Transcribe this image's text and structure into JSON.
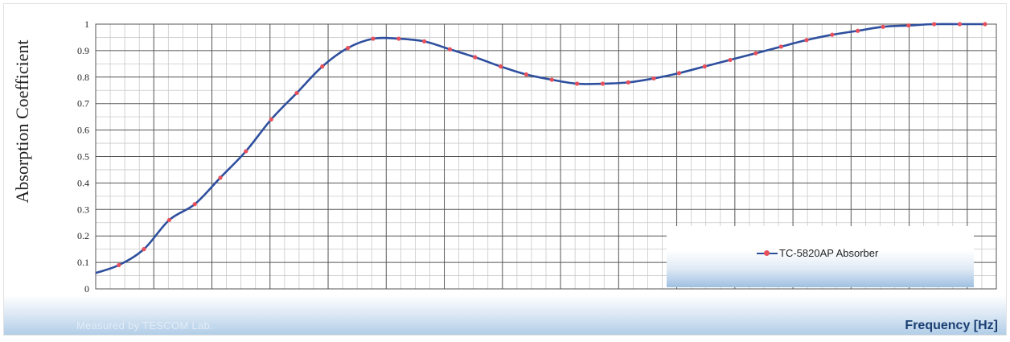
{
  "chart_data": {
    "type": "line",
    "title": "",
    "xlabel": "Frequency [Hz]",
    "ylabel": "Absorption Coefficient",
    "xlim": [
      200,
      3300
    ],
    "ylim": [
      0,
      1
    ],
    "x_ticks": [
      200,
      400,
      600,
      800,
      1000,
      1200,
      1400,
      1600,
      1800,
      2000,
      2200,
      2400,
      2600,
      2800,
      3000,
      3200
    ],
    "y_ticks": [
      "0",
      "0.1",
      "0.2",
      "0.3",
      "0.4",
      "0.5",
      "0.6",
      "0.7",
      "0.8",
      "0.9",
      "1"
    ],
    "grid": true,
    "legend_position": "bottom-right",
    "series": [
      {
        "name": "TC-5820AP Absorber",
        "color": "#2e4f9e",
        "marker_color": "#e8505b",
        "x": [
          280,
          366,
          453,
          541,
          629,
          717,
          804,
          892,
          980,
          1068,
          1155,
          1243,
          1331,
          1419,
          1506,
          1594,
          1682,
          1770,
          1857,
          1945,
          2033,
          2121,
          2208,
          2296,
          2384,
          2472,
          2559,
          2647,
          2735,
          2823,
          2910,
          2998,
          3086,
          3174,
          3261
        ],
        "y": [
          0.09,
          0.15,
          0.26,
          0.32,
          0.42,
          0.52,
          0.64,
          0.74,
          0.84,
          0.91,
          0.945,
          0.945,
          0.935,
          0.905,
          0.875,
          0.84,
          0.81,
          0.79,
          0.775,
          0.775,
          0.78,
          0.795,
          0.815,
          0.84,
          0.865,
          0.89,
          0.915,
          0.94,
          0.96,
          0.975,
          0.99,
          0.995,
          1.0,
          1.0,
          1.0
        ]
      }
    ],
    "line_start": {
      "x": 200,
      "y": 0.06
    }
  },
  "footer": {
    "watermark": "Measured by TESCOM Lab.",
    "axis_title": "Frequency [Hz]"
  }
}
